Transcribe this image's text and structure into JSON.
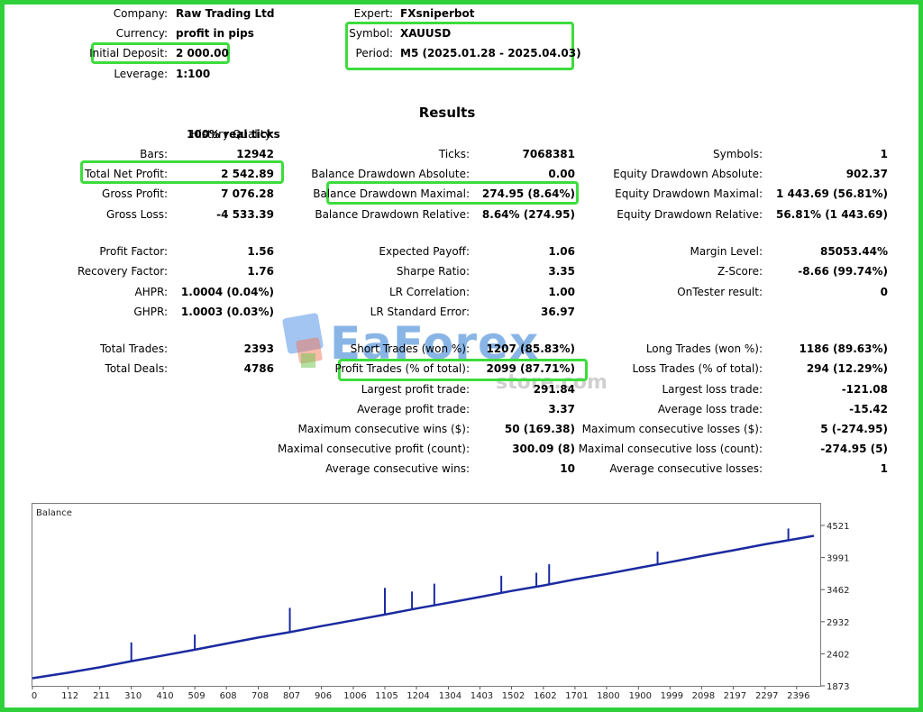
{
  "header": {
    "company_label": "Company:",
    "company": "Raw Trading Ltd",
    "currency_label": "Currency:",
    "currency": "profit in pips",
    "deposit_label": "Initial Deposit:",
    "deposit": "2 000.00",
    "leverage_label": "Leverage:",
    "leverage": "1:100",
    "expert_label": "Expert:",
    "expert": "FXsniperbot",
    "symbol_label": "Symbol:",
    "symbol": "XAUUSD",
    "period_label": "Period:",
    "period": "M5 (2025.01.28 - 2025.04.03)"
  },
  "results_title": "Results",
  "col1": {
    "history_quality_label": "History Quality:",
    "history_quality": "100% real ticks",
    "bars_label": "Bars:",
    "bars": "12942",
    "net_profit_label": "Total Net Profit:",
    "net_profit": "2 542.89",
    "gross_profit_label": "Gross Profit:",
    "gross_profit": "7 076.28",
    "gross_loss_label": "Gross Loss:",
    "gross_loss": "-4 533.39",
    "profit_factor_label": "Profit Factor:",
    "profit_factor": "1.56",
    "recovery_factor_label": "Recovery Factor:",
    "recovery_factor": "1.76",
    "ahpr_label": "AHPR:",
    "ahpr": "1.0004 (0.04%)",
    "ghpr_label": "GHPR:",
    "ghpr": "1.0003 (0.03%)",
    "total_trades_label": "Total Trades:",
    "total_trades": "2393",
    "total_deals_label": "Total Deals:",
    "total_deals": "4786"
  },
  "col2": {
    "ticks_label": "Ticks:",
    "ticks": "7068381",
    "bal_dd_abs_label": "Balance Drawdown Absolute:",
    "bal_dd_abs": "0.00",
    "bal_dd_max_label": "Balance Drawdown Maximal:",
    "bal_dd_max": "274.95 (8.64%)",
    "bal_dd_rel_label": "Balance Drawdown Relative:",
    "bal_dd_rel": "8.64% (274.95)",
    "expected_payoff_label": "Expected Payoff:",
    "expected_payoff": "1.06",
    "sharpe_label": "Sharpe Ratio:",
    "sharpe": "3.35",
    "lr_corr_label": "LR Correlation:",
    "lr_corr": "1.00",
    "lr_err_label": "LR Standard Error:",
    "lr_err": "36.97",
    "short_label": "Short Trades (won %):",
    "short": "1207 (85.83%)",
    "profit_trades_label": "Profit Trades (% of total):",
    "profit_trades": "2099 (87.71%)",
    "largest_profit_label": "Largest profit trade:",
    "largest_profit": "291.84",
    "avg_profit_label": "Average profit trade:",
    "avg_profit": "3.37",
    "max_cons_wins_label": "Maximum consecutive wins ($):",
    "max_cons_wins": "50 (169.38)",
    "maximal_cons_profit_label": "Maximal consecutive profit (count):",
    "maximal_cons_profit": "300.09 (8)",
    "avg_cons_wins_label": "Average consecutive wins:",
    "avg_cons_wins": "10"
  },
  "col3": {
    "symbols_label": "Symbols:",
    "symbols": "1",
    "eq_dd_abs_label": "Equity Drawdown Absolute:",
    "eq_dd_abs": "902.37",
    "eq_dd_max_label": "Equity Drawdown Maximal:",
    "eq_dd_max": "1 443.69 (56.81%)",
    "eq_dd_rel_label": "Equity Drawdown Relative:",
    "eq_dd_rel": "56.81% (1 443.69)",
    "margin_label": "Margin Level:",
    "margin": "85053.44%",
    "zscore_label": "Z-Score:",
    "zscore": "-8.66 (99.74%)",
    "ontester_label": "OnTester result:",
    "ontester": "0",
    "long_label": "Long Trades (won %):",
    "long": "1186 (89.63%)",
    "loss_trades_label": "Loss Trades (% of total):",
    "loss_trades": "294 (12.29%)",
    "largest_loss_label": "Largest loss trade:",
    "largest_loss": "-121.08",
    "avg_loss_label": "Average loss trade:",
    "avg_loss": "-15.42",
    "max_cons_losses_label": "Maximum consecutive losses ($):",
    "max_cons_losses": "5 (-274.95)",
    "maximal_cons_loss_label": "Maximal consecutive loss (count):",
    "maximal_cons_loss": "-274.95 (5)",
    "avg_cons_losses_label": "Average consecutive losses:",
    "avg_cons_losses": "1"
  },
  "watermark": {
    "text": "EaForex",
    "sub": "store.com"
  },
  "colors": {
    "highlight": "#3ddc3d",
    "frame": "#2fd13b",
    "balance_line": "#1a2aa0"
  },
  "chart_data": {
    "type": "line",
    "title": "Balance",
    "series": [
      {
        "name": "Balance",
        "x": [
          0,
          112,
          211,
          310,
          410,
          509,
          608,
          708,
          807,
          906,
          1006,
          1105,
          1204,
          1304,
          1403,
          1502,
          1602,
          1701,
          1800,
          1900,
          1999,
          2098,
          2197,
          2297,
          2396,
          2450
        ],
        "values": [
          2000,
          2090,
          2180,
          2280,
          2375,
          2470,
          2570,
          2670,
          2760,
          2860,
          2955,
          3050,
          3150,
          3245,
          3340,
          3440,
          3530,
          3630,
          3720,
          3820,
          3915,
          4015,
          4110,
          4210,
          4300,
          4350
        ]
      }
    ],
    "spikes": [
      {
        "x": 310,
        "top": 2590
      },
      {
        "x": 509,
        "top": 2720
      },
      {
        "x": 807,
        "top": 3160
      },
      {
        "x": 1105,
        "top": 3490
      },
      {
        "x": 1190,
        "top": 3430
      },
      {
        "x": 1260,
        "top": 3560
      },
      {
        "x": 1470,
        "top": 3690
      },
      {
        "x": 1580,
        "top": 3740
      },
      {
        "x": 1620,
        "top": 3880
      },
      {
        "x": 1960,
        "top": 4090
      },
      {
        "x": 2370,
        "top": 4470
      }
    ],
    "x_ticks": [
      "0",
      "112",
      "211",
      "310",
      "410",
      "509",
      "608",
      "708",
      "807",
      "906",
      "1006",
      "1105",
      "1204",
      "1304",
      "1403",
      "1502",
      "1602",
      "1701",
      "1800",
      "1900",
      "1999",
      "2098",
      "2197",
      "2297",
      "2396"
    ],
    "y_ticks": [
      "1873",
      "2402",
      "2932",
      "3462",
      "3991",
      "4521"
    ],
    "xlim": [
      0,
      2470
    ],
    "ylim": [
      1873,
      4640
    ],
    "grid": false,
    "legend": "none"
  }
}
